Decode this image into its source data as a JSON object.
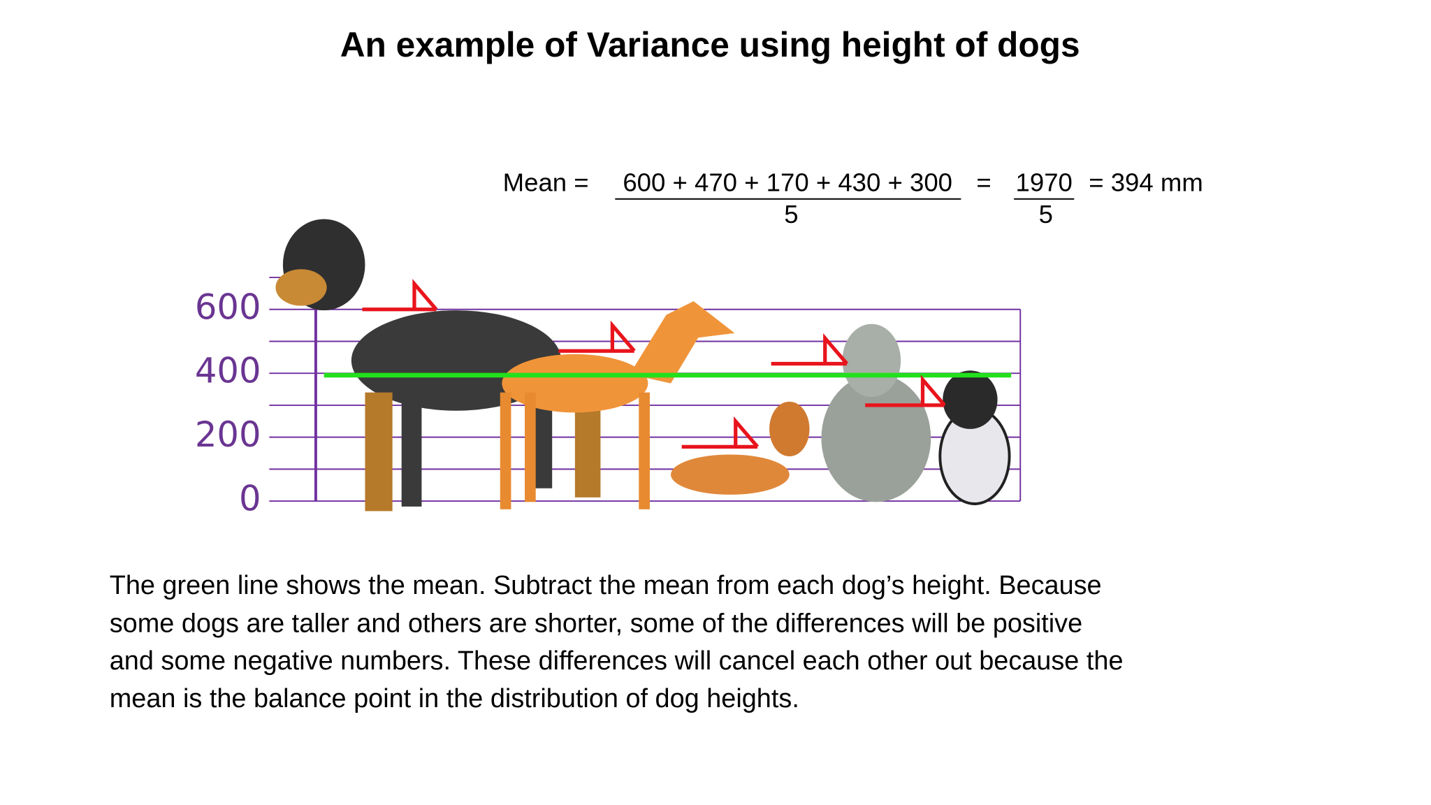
{
  "header": {
    "title": "An example of Variance using height of dogs"
  },
  "formula": {
    "lhs": "Mean =",
    "numerator": "600 + 470 + 170 + 430 + 300",
    "denominator": "5",
    "equals": "=",
    "sum": "1970",
    "sum_denominator": "5",
    "result": "= 394 mm"
  },
  "chart_data": {
    "type": "height-markers",
    "ylim": [
      0,
      700
    ],
    "yticks": [
      0,
      200,
      400,
      600
    ],
    "minor_yticks": [
      100,
      300,
      500
    ],
    "grid": true,
    "grid_color": "#7030a0",
    "series": [
      {
        "color": "#e8141c",
        "values": [
          600,
          470,
          170,
          430,
          300
        ]
      }
    ],
    "mean": 394,
    "mean_color": "#22e01c"
  },
  "body": {
    "lines": [
      "The green line shows the mean. Subtract the mean from each dog’s height. Because",
      "some dogs are taller and others are shorter, some of the differences will be positive",
      "and some negative numbers. These differences will cancel each other out because the",
      "mean is the balance point in the distribution of dog heights."
    ]
  }
}
